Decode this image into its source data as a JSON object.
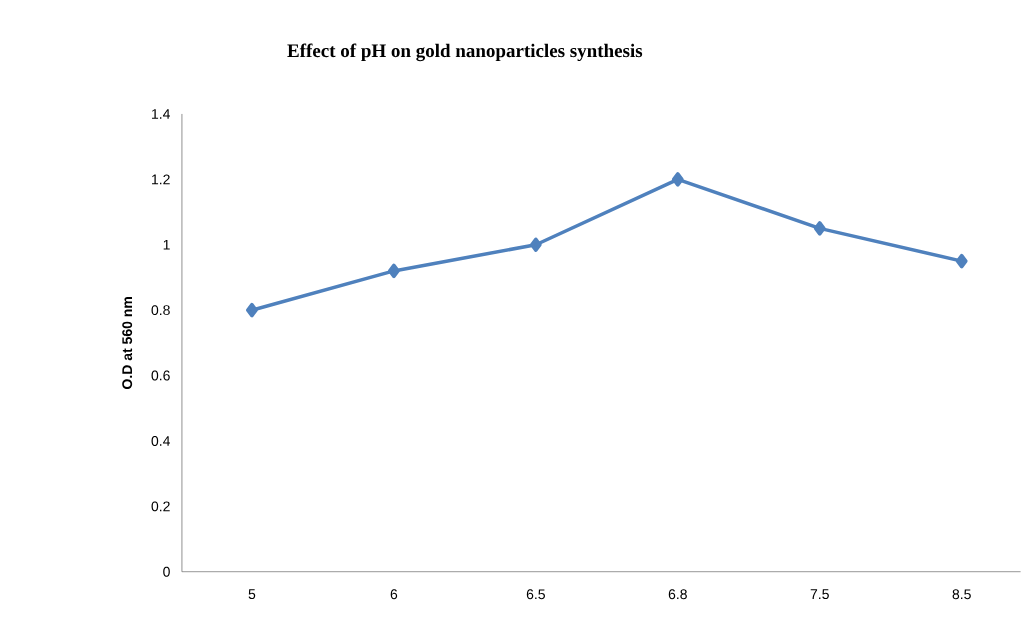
{
  "chart_data": {
    "type": "line",
    "title": "Effect of pH on gold nanoparticles synthesis",
    "ylabel": "O.D at 560 nm",
    "categories": [
      "5",
      "6",
      "6.5",
      "6.8",
      "7.5",
      "8.5"
    ],
    "series": [
      {
        "color": "#4f81bd",
        "values": [
          0.8,
          0.92,
          1.0,
          1.2,
          1.05,
          0.95
        ]
      }
    ],
    "ylim": [
      0,
      1.4
    ],
    "yticks": [
      0,
      0.2,
      0.4,
      0.6,
      0.8,
      1,
      1.2,
      1.4
    ],
    "marker": "diamond",
    "grid": false
  }
}
